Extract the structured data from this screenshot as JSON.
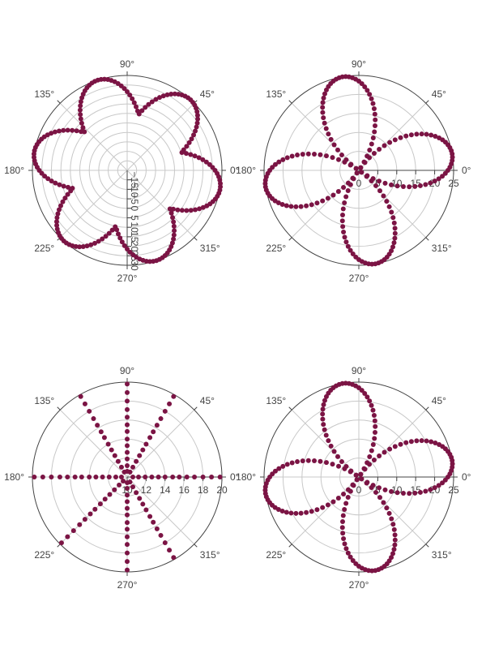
{
  "colors": {
    "marker": "#7b1444",
    "grid": "#c8c8c8",
    "frame": "#444444",
    "text": "#444444",
    "background": "#ffffff"
  },
  "chart_data": [
    {
      "type": "scatter",
      "coordinate_system": "polar",
      "formula": "r = 10 + 20*|sin(3(θ - 0.32))|, sampled every 2 degrees",
      "angular_tick_labels": [
        "0°",
        "45°",
        "90°",
        "135°",
        "180°",
        "225°",
        "270°",
        "315°"
      ],
      "radial_range": [
        -20,
        30
      ],
      "radial_tick_values": [
        -15,
        -10,
        -5,
        0,
        5,
        10,
        15,
        20,
        25,
        30
      ],
      "radial_tick_labels": [
        "−15",
        "−10",
        "−5",
        "0",
        "5",
        "10",
        "15",
        "20",
        "25",
        "30"
      ],
      "radial_axis_angle": 270,
      "samples": [
        {
          "theta": 0,
          "r": 26.0
        },
        {
          "theta": 30,
          "r": 21.5
        },
        {
          "theta": 60,
          "r": 27.3
        },
        {
          "theta": 78,
          "r": 10.2
        },
        {
          "theta": 90,
          "r": 26.0
        },
        {
          "theta": 120,
          "r": 26.0
        },
        {
          "theta": 150,
          "r": 27.3
        },
        {
          "theta": 180,
          "r": 26.0
        },
        {
          "theta": 210,
          "r": 21.5
        },
        {
          "theta": 240,
          "r": 27.3
        },
        {
          "theta": 270,
          "r": 26.0
        },
        {
          "theta": 300,
          "r": 26.0
        },
        {
          "theta": 330,
          "r": 27.3
        }
      ]
    },
    {
      "type": "scatter",
      "coordinate_system": "polar",
      "formula": "r = 25*|cos(2(θ - 10°))|, sampled every 2 degrees",
      "angular_tick_labels": [
        "0°",
        "45°",
        "90°",
        "135°",
        "180°",
        "225°",
        "270°",
        "315°"
      ],
      "radial_range": [
        0,
        25
      ],
      "radial_tick_values": [
        0,
        5,
        10,
        15,
        20,
        25
      ],
      "radial_tick_labels": [
        "0",
        "5",
        "10",
        "15",
        "20",
        "25"
      ],
      "radial_axis_angle": 0,
      "samples": [
        {
          "theta": 0,
          "r": 23.5
        },
        {
          "theta": 10,
          "r": 25.0
        },
        {
          "theta": 55,
          "r": 0.4
        },
        {
          "theta": 100,
          "r": 25.0
        },
        {
          "theta": 145,
          "r": 0.4
        },
        {
          "theta": 190,
          "r": 25.0
        },
        {
          "theta": 235,
          "r": 0.4
        },
        {
          "theta": 280,
          "r": 25.0
        },
        {
          "theta": 325,
          "r": 0.4
        }
      ]
    },
    {
      "type": "scatter",
      "coordinate_system": "polar",
      "description": "points along 8 radial spokes, plotted as r = 10 + |t|",
      "spoke_angles": [
        0,
        60,
        90,
        120,
        180,
        225,
        270,
        300
      ],
      "angular_tick_labels": [
        "0°",
        "45°",
        "90°",
        "135°",
        "180°",
        "225°",
        "270°",
        "315°"
      ],
      "radial_range": [
        10,
        20
      ],
      "radial_tick_values": [
        10,
        12,
        14,
        16,
        18,
        20
      ],
      "radial_tick_labels": [
        "10",
        "12",
        "14",
        "16",
        "18",
        "20"
      ],
      "radial_axis_angle": 0,
      "points_per_spoke_r": [
        10.6,
        11.2,
        11.9,
        12.6,
        13.3,
        14.0,
        14.8,
        15.5,
        16.3,
        17.1,
        18.0,
        18.9,
        19.8,
        20.6
      ]
    },
    {
      "type": "scatter",
      "coordinate_system": "polar",
      "formula": "r = 25*|cos(2(θ - 10°))|, sampled every 2 degrees",
      "angular_tick_labels": [
        "0°",
        "45°",
        "90°",
        "135°",
        "180°",
        "225°",
        "270°",
        "315°"
      ],
      "radial_range": [
        0,
        25
      ],
      "radial_tick_values": [
        0,
        5,
        10,
        15,
        20,
        25
      ],
      "radial_tick_labels": [
        "0",
        "5",
        "10",
        "15",
        "20",
        "25"
      ],
      "radial_axis_angle": 0,
      "samples": [
        {
          "theta": 0,
          "r": 23.5
        },
        {
          "theta": 10,
          "r": 25.0
        },
        {
          "theta": 55,
          "r": 0.4
        },
        {
          "theta": 100,
          "r": 25.0
        },
        {
          "theta": 145,
          "r": 0.4
        },
        {
          "theta": 190,
          "r": 25.0
        },
        {
          "theta": 235,
          "r": 0.4
        },
        {
          "theta": 280,
          "r": 25.0
        },
        {
          "theta": 325,
          "r": 0.4
        }
      ]
    }
  ]
}
